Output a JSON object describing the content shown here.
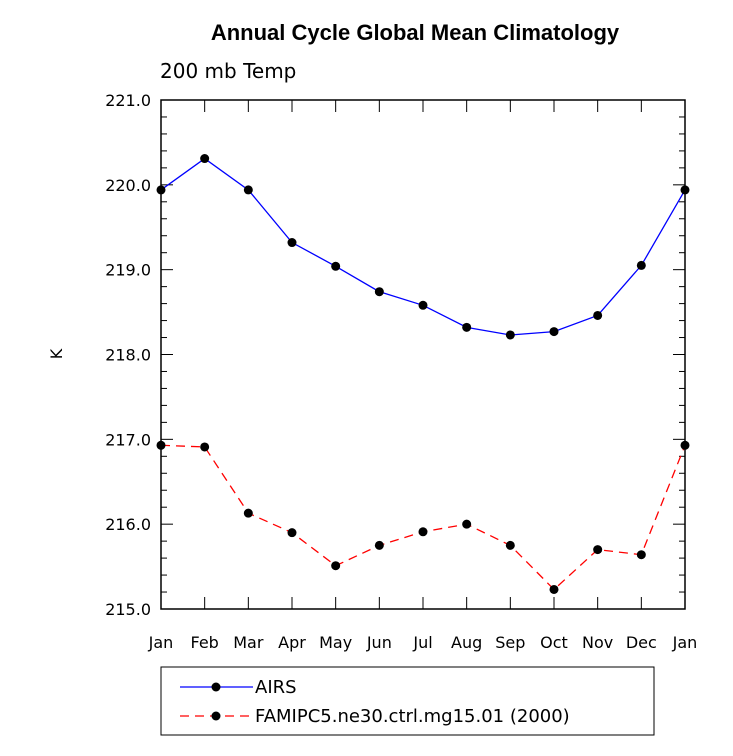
{
  "chart_data": {
    "type": "line",
    "title": "Annual Cycle Global Mean Climatology",
    "subtitle": "200 mb Temp",
    "xlabel": "",
    "ylabel": "K",
    "categories": [
      "Jan",
      "Feb",
      "Mar",
      "Apr",
      "May",
      "Jun",
      "Jul",
      "Aug",
      "Sep",
      "Oct",
      "Nov",
      "Dec",
      "Jan"
    ],
    "y_ticks": [
      "215.0",
      "216.0",
      "217.0",
      "218.0",
      "219.0",
      "220.0",
      "221.0"
    ],
    "ylim": [
      215.0,
      221.0
    ],
    "grid": false,
    "legend_position": "bottom",
    "series": [
      {
        "name": "AIRS",
        "color": "#0000ff",
        "dash": "solid",
        "values": [
          219.94,
          220.31,
          219.94,
          219.32,
          219.04,
          218.74,
          218.58,
          218.32,
          218.23,
          218.27,
          218.46,
          219.05,
          219.94
        ]
      },
      {
        "name": "FAMIPC5.ne30.ctrl.mg15.01 (2000)",
        "color": "#ff0000",
        "dash": "dashed",
        "values": [
          216.93,
          216.91,
          216.13,
          215.9,
          215.51,
          215.75,
          215.91,
          216.0,
          215.75,
          215.23,
          215.7,
          215.64,
          216.93
        ]
      }
    ]
  }
}
